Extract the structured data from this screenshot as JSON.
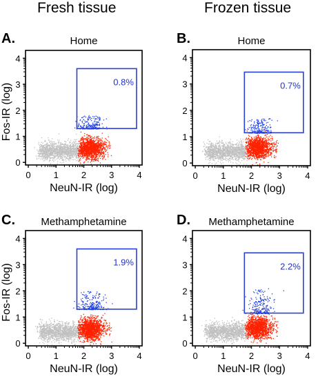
{
  "column_headers": [
    "Fresh tissue",
    "Frozen tissue"
  ],
  "colors": {
    "gray_population": "#c0c0c0",
    "neun_population": "#ff2200",
    "fos_population": "#1f3fe0",
    "gate_box": "#2a3fd6",
    "gate_label": "#2233cc"
  },
  "chart_data": [
    {
      "type": "scatter",
      "panel_letter": "A.",
      "title": "Home",
      "xlabel": "NeuN-IR (log)",
      "ylabel": "Fos-IR (log)",
      "xlim": [
        -0.1,
        4.1
      ],
      "ylim": [
        -0.1,
        4.3
      ],
      "xticks": [
        "0",
        "1",
        "2",
        "3",
        "4"
      ],
      "yticks": [
        "0",
        "1",
        "2",
        "3",
        "4"
      ],
      "gate": {
        "x": [
          1.75,
          3.9
        ],
        "y": [
          1.3,
          3.6
        ],
        "label": "0.8%"
      },
      "populations": {
        "gray": {
          "x_range": [
            0.4,
            1.8
          ],
          "y_center": 0.45
        },
        "red": {
          "x_range": [
            1.75,
            2.9
          ],
          "y_center": 0.55
        },
        "blue": {
          "x_range": [
            1.8,
            2.7
          ],
          "y_range": [
            1.3,
            1.8
          ]
        }
      }
    },
    {
      "type": "scatter",
      "panel_letter": "B.",
      "title": "Home",
      "xlabel": "NeuN-IR (log)",
      "ylabel": "",
      "xlim": [
        -0.1,
        4.1
      ],
      "ylim": [
        -0.1,
        4.3
      ],
      "xticks": [
        "0",
        "1",
        "2",
        "3",
        "4"
      ],
      "yticks": [
        "0",
        "1",
        "2",
        "3",
        "4"
      ],
      "gate": {
        "x": [
          1.75,
          3.85
        ],
        "y": [
          1.15,
          3.45
        ],
        "label": "0.7%"
      },
      "populations": {
        "gray": {
          "x_range": [
            0.4,
            1.8
          ],
          "y_center": 0.45
        },
        "red": {
          "x_range": [
            1.75,
            2.85
          ],
          "y_center": 0.6
        },
        "blue": {
          "x_range": [
            1.9,
            2.7
          ],
          "y_range": [
            1.15,
            1.7
          ]
        }
      }
    },
    {
      "type": "scatter",
      "panel_letter": "C.",
      "title": "Methamphetamine",
      "xlabel": "NeuN-IR (log)",
      "ylabel": "Fos-IR (log)",
      "xlim": [
        -0.1,
        4.1
      ],
      "ylim": [
        -0.1,
        4.3
      ],
      "xticks": [
        "0",
        "1",
        "2",
        "3",
        "4"
      ],
      "yticks": [
        "0",
        "1",
        "2",
        "3",
        "4"
      ],
      "gate": {
        "x": [
          1.75,
          3.9
        ],
        "y": [
          1.3,
          3.6
        ],
        "label": "1.9%"
      },
      "populations": {
        "gray": {
          "x_range": [
            0.4,
            1.8
          ],
          "y_center": 0.45
        },
        "red": {
          "x_range": [
            1.75,
            2.9
          ],
          "y_center": 0.55
        },
        "blue": {
          "x_range": [
            1.85,
            2.75
          ],
          "y_range": [
            1.3,
            2.0
          ]
        }
      }
    },
    {
      "type": "scatter",
      "panel_letter": "D.",
      "title": "Methamphetamine",
      "xlabel": "NeuN-IR (log)",
      "ylabel": "",
      "xlim": [
        -0.1,
        4.1
      ],
      "ylim": [
        -0.1,
        4.3
      ],
      "xticks": [
        "0",
        "1",
        "2",
        "3",
        "4"
      ],
      "yticks": [
        "0",
        "1",
        "2",
        "3",
        "4"
      ],
      "gate": {
        "x": [
          1.75,
          3.85
        ],
        "y": [
          1.15,
          3.45
        ],
        "label": "2.2%"
      },
      "populations": {
        "gray": {
          "x_range": [
            0.4,
            1.8
          ],
          "y_center": 0.45
        },
        "red": {
          "x_range": [
            1.75,
            2.85
          ],
          "y_center": 0.6
        },
        "blue": {
          "x_range": [
            1.9,
            2.75
          ],
          "y_range": [
            1.15,
            2.1
          ]
        }
      }
    }
  ]
}
